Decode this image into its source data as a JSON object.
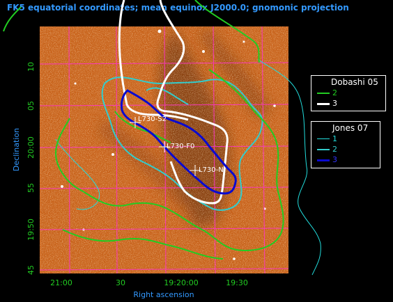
{
  "title": "FK5 equatorial coordinates; mean equinox J2000.0; gnomonic projection",
  "axes": {
    "xlabel": "Right ascension",
    "ylabel": "Declination",
    "xticks": [
      "21:00",
      "30",
      "19:20:00",
      "19:30"
    ],
    "yticks": [
      "10",
      "05",
      "20:00",
      "55",
      "19:50",
      "45"
    ]
  },
  "sources": [
    {
      "label": "L730-S2"
    },
    {
      "label": "L730-F0"
    },
    {
      "label": "L730-N"
    }
  ],
  "legends": [
    {
      "title": "Dobashi 05",
      "entries": [
        {
          "label": "2",
          "color": "#22cc22"
        },
        {
          "label": "3",
          "color": "#ffffff"
        }
      ]
    },
    {
      "title": "Jones 07",
      "entries": [
        {
          "label": "1",
          "color": "#22dddd"
        },
        {
          "label": "2",
          "color": "#33cccc"
        },
        {
          "label": "3",
          "color": "#0a0ad0"
        }
      ]
    }
  ],
  "colors": {
    "image_base": "#c8621a",
    "grid": "#ff33cc",
    "title": "#3399ff",
    "axis_label": "#3399ff",
    "tick": "#22cc22"
  }
}
